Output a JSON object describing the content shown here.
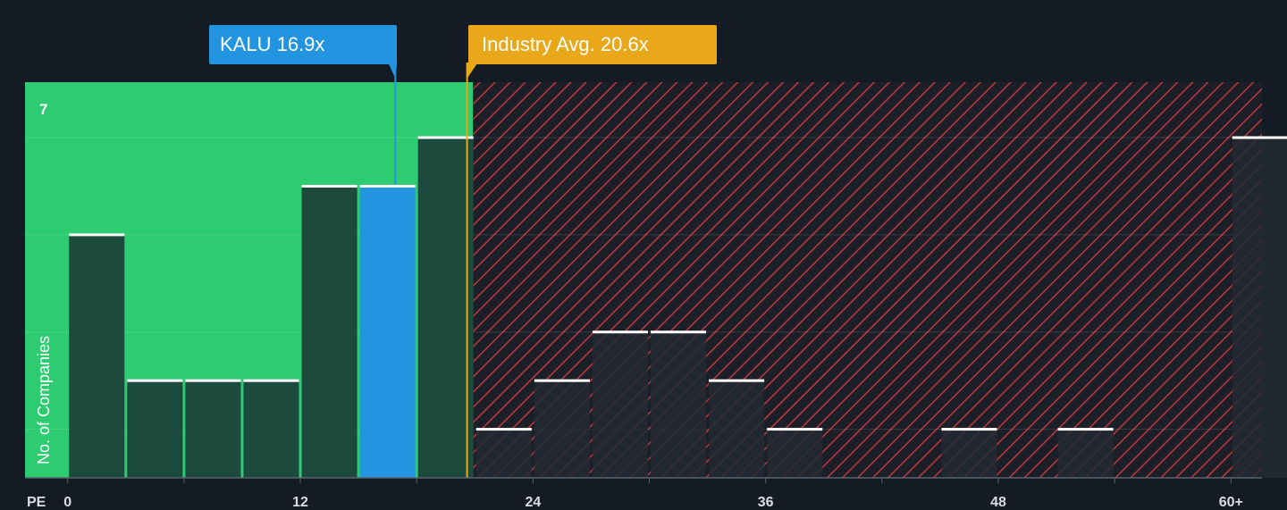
{
  "chart_data": {
    "type": "bar",
    "title": "",
    "xlabel": "PE",
    "ylabel": "No. of Companies",
    "x_ticks": [
      {
        "value": 0,
        "label": "0"
      },
      {
        "value": 12,
        "label": "12"
      },
      {
        "value": 24,
        "label": "24"
      },
      {
        "value": 36,
        "label": "36"
      },
      {
        "value": 48,
        "label": "48"
      },
      {
        "value": 60,
        "label": "60+"
      }
    ],
    "y_tick_label": "7",
    "xlim": [
      -2.2,
      61.6
    ],
    "ylim": [
      0,
      8.14
    ],
    "bin_width": 3,
    "bins": [
      {
        "start": 0,
        "count": 5
      },
      {
        "start": 3,
        "count": 2
      },
      {
        "start": 6,
        "count": 2
      },
      {
        "start": 9,
        "count": 2
      },
      {
        "start": 12,
        "count": 6
      },
      {
        "start": 15,
        "count": 6,
        "highlight": true
      },
      {
        "start": 18,
        "count": 7
      },
      {
        "start": 21,
        "count": 1
      },
      {
        "start": 24,
        "count": 2
      },
      {
        "start": 27,
        "count": 3
      },
      {
        "start": 30,
        "count": 3
      },
      {
        "start": 33,
        "count": 2
      },
      {
        "start": 36,
        "count": 1
      },
      {
        "start": 39,
        "count": 0
      },
      {
        "start": 42,
        "count": 0
      },
      {
        "start": 45,
        "count": 1
      },
      {
        "start": 48,
        "count": 0
      },
      {
        "start": 51,
        "count": 1
      },
      {
        "start": 54,
        "count": 0
      },
      {
        "start": 57,
        "count": 0
      },
      {
        "start": 60,
        "count": 7
      }
    ],
    "subject": {
      "ticker": "KALU",
      "pe": 16.9,
      "label": "KALU 16.9x"
    },
    "industry": {
      "pe": 20.6,
      "label": "Industry Avg. 20.6x"
    },
    "colors": {
      "background": "#151b24",
      "below_zone": "#2ecc71",
      "above_zone_stripe": "#c0393b",
      "bar_fill": "#1c4a3c",
      "bar_fill_above": "#222a33",
      "bar_top": "#ffffff",
      "subject": "#2394e0",
      "industry": "#e8a81a",
      "text": "#ffffff",
      "axis_text": "#d9dde3"
    }
  }
}
